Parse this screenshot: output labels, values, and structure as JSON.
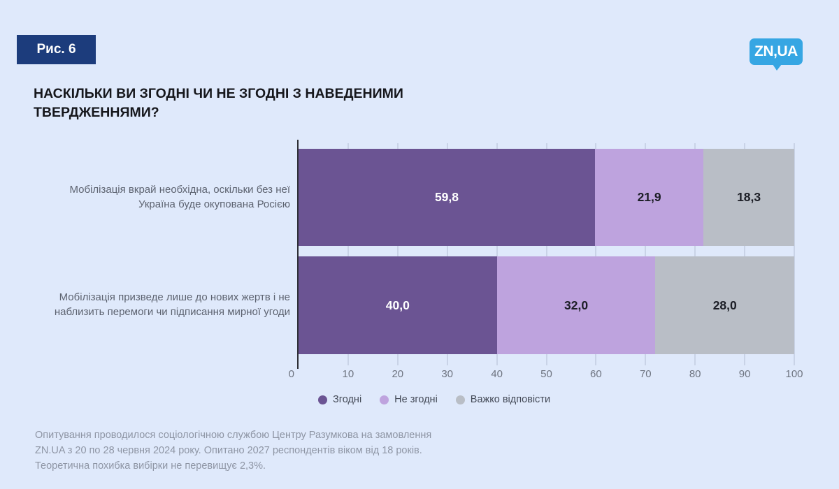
{
  "figure_label": "Рис. 6",
  "logo": {
    "text": "ZN,UA",
    "color": "#36a6e3"
  },
  "title": {
    "line1": "НАСКІЛЬКИ ВИ ЗГОДНІ ЧИ НЕ ЗГОДНІ З НАВЕДЕНИМИ",
    "line2": "ТВЕРДЖЕННЯМИ?"
  },
  "chart_data": {
    "type": "bar",
    "orientation": "horizontal-stacked",
    "title": "НАСКІЛЬКИ ВИ ЗГОДНІ ЧИ НЕ ЗГОДНІ З НАВЕДЕНИМИ ТВЕРДЖЕННЯМИ?",
    "categories": [
      {
        "lines": [
          "Мобілізація вкрай необхідна, оскільки без неї",
          "Україна буде окупована Росією"
        ]
      },
      {
        "lines": [
          "Мобілізація призведе лише до нових жертв і не",
          "наблизить перемоги чи підписання мирної угоди"
        ]
      }
    ],
    "series": [
      {
        "name": "Згодні",
        "color": "#6b5493",
        "text_color": "#ffffff",
        "values": [
          59.8,
          40.0
        ]
      },
      {
        "name": "Не згодні",
        "color": "#bea3de",
        "text_color": "#1c1e26",
        "values": [
          21.9,
          32.0
        ]
      },
      {
        "name": "Важко відповісти",
        "color": "#b9bec6",
        "text_color": "#1c1e26",
        "values": [
          18.3,
          28.0
        ]
      }
    ],
    "value_labels": [
      [
        "59,8",
        "21,9",
        "18,3"
      ],
      [
        "40,0",
        "32,0",
        "28,0"
      ]
    ],
    "xlim": [
      0,
      100
    ],
    "xticks": [
      "0",
      "10",
      "20",
      "30",
      "40",
      "50",
      "60",
      "70",
      "80",
      "90",
      "100"
    ],
    "grid": true,
    "legend_position": "bottom",
    "colors": {
      "background": "#dfe9fb",
      "axis_line": "#2f3036",
      "gridline": "#c9d3e7",
      "badge": "#1c3c7c"
    }
  },
  "footer": {
    "lines": [
      "Опитування проводилося соціологічною службою Центру Разумкова на замовлення",
      "ZN.UA з 20 по 28 червня 2024 року. Опитано 2027 респондентів віком від 18 років.",
      "Теоретична похибка вибірки не перевищує 2,3%."
    ]
  }
}
